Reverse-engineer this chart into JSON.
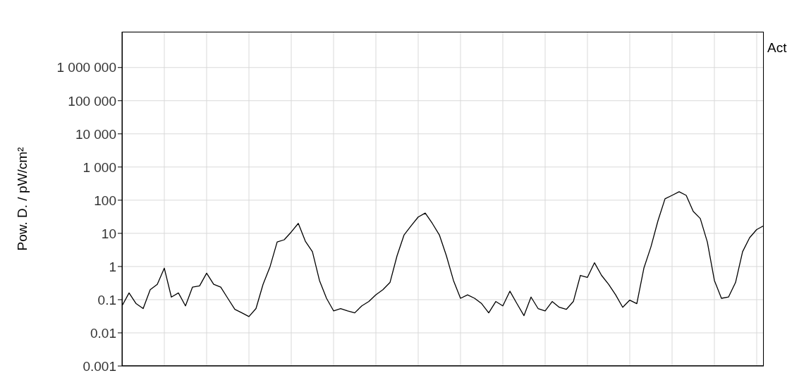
{
  "chart_data": {
    "type": "line",
    "ylabel": "Pow. D. / pW/cm²",
    "annotations": [
      "Act"
    ],
    "categories": [
      null,
      null,
      null,
      null,
      null,
      null,
      null,
      null,
      null,
      null,
      null,
      null,
      null,
      null,
      null,
      null,
      null,
      null,
      null,
      null,
      null,
      null,
      null,
      null,
      null,
      null,
      null,
      null,
      null,
      null,
      null,
      null,
      null,
      null,
      null,
      null,
      null,
      null,
      null,
      null,
      null,
      null,
      null,
      null,
      null,
      null,
      null,
      null,
      null,
      null,
      null,
      null,
      null,
      null,
      null,
      null,
      null,
      null,
      null,
      null,
      null,
      null,
      null,
      null,
      null,
      null,
      null,
      null,
      null,
      null,
      null,
      null,
      null,
      null,
      null,
      null,
      null,
      null,
      null,
      null,
      null,
      null,
      null,
      null,
      null,
      null,
      null,
      null,
      null,
      null,
      null,
      null
    ],
    "series": [
      {
        "color": "#000000",
        "values": [
          0.065,
          0.16,
          0.076,
          0.054,
          0.2,
          0.29,
          0.89,
          0.12,
          0.16,
          0.065,
          0.24,
          0.26,
          0.63,
          0.29,
          0.24,
          0.11,
          0.051,
          0.04,
          0.031,
          0.054,
          0.29,
          1.0,
          5.5,
          6.4,
          11,
          20,
          5.8,
          2.8,
          0.38,
          0.11,
          0.046,
          0.054,
          0.046,
          0.04,
          0.065,
          0.088,
          0.14,
          0.2,
          0.33,
          2.1,
          9.0,
          17,
          31,
          41,
          20,
          9.0,
          2.1,
          0.38,
          0.11,
          0.14,
          0.11,
          0.076,
          0.04,
          0.088,
          0.065,
          0.18,
          0.076,
          0.033,
          0.12,
          0.054,
          0.046,
          0.088,
          0.059,
          0.051,
          0.088,
          0.54,
          0.47,
          1.3,
          0.54,
          0.29,
          0.14,
          0.059,
          0.097,
          0.076,
          0.89,
          3.9,
          24,
          110,
          140,
          180,
          140,
          46,
          28,
          5.5,
          0.38,
          0.11,
          0.12,
          0.33,
          2.8,
          7.4,
          13,
          17
        ]
      }
    ],
    "log": "y",
    "ylim": [
      0.001,
      12000000
    ],
    "yticks": [
      0.001,
      0.01,
      0.1,
      1,
      10,
      100,
      {
        "value": 1000,
        "label": "1 000"
      },
      {
        "value": 10000,
        "label": "10 000"
      },
      {
        "value": 100000,
        "label": "100 000"
      },
      {
        "value": 1000000,
        "label": "1 000 000"
      }
    ],
    "grid": true,
    "marker": "none",
    "line_style": "solid",
    "tick_labels": "y"
  }
}
